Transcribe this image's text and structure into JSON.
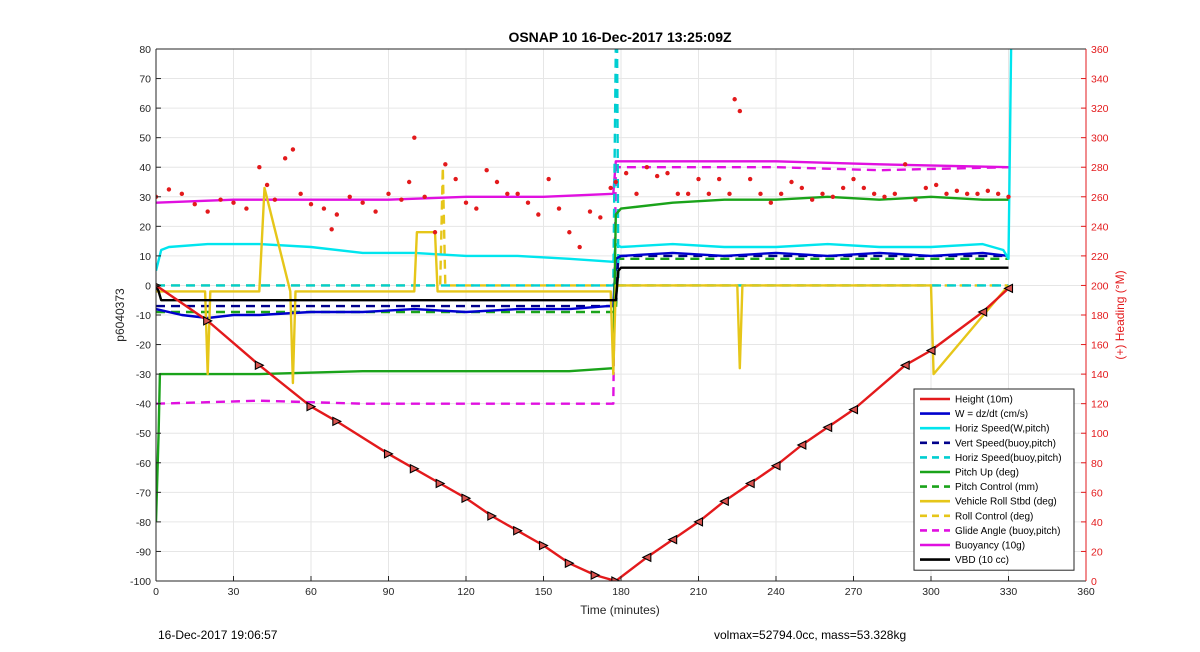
{
  "chart_data": {
    "type": "line",
    "title": "OSNAP 10 16-Dec-2017 13:25:09Z",
    "xlabel": "Time (minutes)",
    "ylabel": "p6040373",
    "y2label": "(+) Heading (°M)",
    "xlim": [
      0,
      360
    ],
    "ylim": [
      -100,
      80
    ],
    "y2lim": [
      0,
      360
    ],
    "xticks": [
      "0",
      "30",
      "60",
      "90",
      "120",
      "150",
      "180",
      "210",
      "240",
      "270",
      "300",
      "330",
      "360"
    ],
    "yticks": [
      "80",
      "70",
      "60",
      "50",
      "40",
      "30",
      "20",
      "10",
      "0",
      "-10",
      "-20",
      "-30",
      "-40",
      "-50",
      "-60",
      "-70",
      "-80",
      "-90",
      "-100"
    ],
    "y2ticks": [
      "360",
      "340",
      "320",
      "300",
      "280",
      "260",
      "240",
      "220",
      "200",
      "180",
      "160",
      "140",
      "120",
      "100",
      "80",
      "60",
      "40",
      "20",
      "0"
    ],
    "grid": true,
    "legend_position": "bottom-right",
    "series": [
      {
        "name": "Height (10m)",
        "color": "#e31a1c",
        "style": "solid",
        "x": [
          0,
          20,
          40,
          60,
          70,
          90,
          100,
          110,
          120,
          130,
          140,
          150,
          160,
          170,
          178,
          190,
          200,
          210,
          220,
          230,
          240,
          250,
          260,
          270,
          290,
          300,
          320,
          330
        ],
        "y": [
          0,
          -12,
          -27,
          -41,
          -46,
          -57,
          -62,
          -67,
          -72,
          -78,
          -83,
          -88,
          -94,
          -98,
          -100,
          -92,
          -86,
          -80,
          -73,
          -67,
          -61,
          -54,
          -48,
          -42,
          -27,
          -22,
          -9,
          -1
        ]
      },
      {
        "name": "W = dz/dt (cm/s)",
        "color": "#0000cd",
        "style": "solid",
        "x": [
          0,
          10,
          20,
          30,
          40,
          60,
          80,
          100,
          120,
          140,
          160,
          175,
          177,
          178,
          180,
          200,
          220,
          240,
          260,
          280,
          300,
          320,
          330
        ],
        "y": [
          -8,
          -10,
          -11,
          -10,
          -10,
          -9,
          -9,
          -8,
          -9,
          -8,
          -8,
          -7,
          -7,
          9,
          10,
          11,
          10,
          11,
          10,
          11,
          10,
          11,
          10
        ]
      },
      {
        "name": "Horiz Speed(W,pitch)",
        "color": "#00e5ee",
        "style": "solid",
        "x": [
          0,
          2,
          5,
          20,
          40,
          60,
          80,
          100,
          120,
          140,
          160,
          177,
          178,
          180,
          200,
          220,
          240,
          260,
          280,
          300,
          320,
          328,
          330,
          331
        ],
        "y": [
          5,
          12,
          13,
          14,
          14,
          13,
          11,
          11,
          10,
          10,
          9,
          8,
          14,
          13,
          14,
          13,
          13,
          14,
          13,
          13,
          14,
          12,
          9,
          80
        ]
      },
      {
        "name": "Vert Speed(buoy,pitch)",
        "color": "#00008b",
        "style": "dash",
        "x": [
          0,
          178,
          179,
          330
        ],
        "y": [
          -7,
          -7,
          10,
          10
        ]
      },
      {
        "name": "Horiz Speed(buoy,pitch)",
        "color": "#00ced1",
        "style": "dash",
        "x": [
          0,
          177,
          178,
          178.5,
          179,
          330
        ],
        "y": [
          0,
          0,
          80,
          80,
          0,
          0
        ]
      },
      {
        "name": "Pitch Up (deg)",
        "color": "#1aa31a",
        "style": "solid",
        "x": [
          0,
          1,
          1.5,
          2,
          40,
          80,
          120,
          160,
          177,
          178,
          180,
          200,
          220,
          240,
          260,
          280,
          300,
          320,
          330
        ],
        "y": [
          -80,
          -50,
          -30,
          -30,
          -30,
          -29,
          -29,
          -29,
          -28,
          24,
          26,
          28,
          29,
          29,
          30,
          29,
          30,
          29,
          29
        ]
      },
      {
        "name": "Pitch Control (mm)",
        "color": "#1aa31a",
        "style": "dash",
        "x": [
          0,
          178,
          179,
          330
        ],
        "y": [
          -9,
          -9,
          9,
          9
        ]
      },
      {
        "name": "Vehicle Roll Stbd (deg)",
        "color": "#e6c619",
        "style": "solid",
        "x": [
          0,
          19,
          20,
          21,
          40,
          42,
          52,
          53,
          54,
          100,
          101,
          108,
          109,
          176,
          177,
          178,
          200,
          225,
          226,
          227,
          300,
          301,
          330
        ],
        "y": [
          -2,
          -2,
          -30,
          -2,
          -2,
          33,
          -2,
          -33,
          -2,
          -2,
          18,
          18,
          -2,
          -2,
          -30,
          0,
          0,
          0,
          -28,
          0,
          0,
          -30,
          0
        ]
      },
      {
        "name": "Roll Control (deg)",
        "color": "#e6c619",
        "style": "dash",
        "x": [
          0,
          110,
          111,
          112,
          178,
          180,
          300,
          330
        ],
        "y": [
          0,
          0,
          40,
          0,
          0,
          0,
          0,
          0
        ]
      },
      {
        "name": "Glide Angle (buoy,pitch)",
        "color": "#e010e0",
        "style": "dash",
        "x": [
          0,
          40,
          80,
          120,
          160,
          177,
          178,
          200,
          240,
          280,
          330
        ],
        "y": [
          -40,
          -39,
          -40,
          -40,
          -40,
          -40,
          40,
          40,
          40,
          39,
          40
        ]
      },
      {
        "name": "Buoyancy (10g)",
        "color": "#e010e0",
        "style": "solid",
        "x": [
          0,
          30,
          60,
          90,
          120,
          150,
          177,
          178,
          200,
          240,
          280,
          330
        ],
        "y": [
          28,
          29,
          29,
          29,
          30,
          30,
          31,
          42,
          42,
          42,
          41,
          40
        ]
      },
      {
        "name": "VBD (10 cc)",
        "color": "#000000",
        "style": "solid",
        "x": [
          0,
          1,
          2,
          178,
          179,
          180,
          330
        ],
        "y": [
          0,
          -2,
          -5,
          -5,
          5,
          6,
          6
        ]
      },
      {
        "name": "(+) Heading (°M)",
        "axis": "right",
        "color": "#e31a1c",
        "style": "dots",
        "x": [
          0,
          5,
          10,
          15,
          20,
          25,
          30,
          35,
          40,
          43,
          46,
          50,
          53,
          56,
          60,
          65,
          68,
          70,
          75,
          80,
          85,
          90,
          95,
          98,
          100,
          104,
          108,
          112,
          116,
          120,
          124,
          128,
          132,
          136,
          140,
          144,
          148,
          152,
          156,
          160,
          164,
          168,
          172,
          176,
          178,
          182,
          186,
          190,
          194,
          198,
          202,
          206,
          210,
          214,
          218,
          222,
          224,
          226,
          230,
          234,
          238,
          242,
          246,
          250,
          254,
          258,
          262,
          266,
          270,
          274,
          278,
          282,
          286,
          290,
          294,
          298,
          302,
          306,
          310,
          314,
          318,
          322,
          326,
          330
        ],
        "y": [
          260,
          265,
          262,
          255,
          250,
          258,
          256,
          252,
          280,
          268,
          258,
          286,
          292,
          262,
          255,
          252,
          238,
          248,
          260,
          256,
          250,
          262,
          258,
          270,
          300,
          260,
          236,
          282,
          272,
          256,
          252,
          278,
          270,
          262,
          262,
          256,
          248,
          272,
          252,
          236,
          226,
          250,
          246,
          266,
          270,
          276,
          262,
          280,
          274,
          276,
          262,
          262,
          272,
          262,
          272,
          262,
          326,
          318,
          272,
          262,
          256,
          262,
          270,
          266,
          258,
          262,
          260,
          266,
          272,
          266,
          262,
          260,
          262,
          282,
          258,
          266,
          268,
          262,
          264,
          262,
          262,
          264,
          262,
          260
        ]
      }
    ]
  },
  "footer": {
    "left": "16-Dec-2017 19:06:57",
    "right": "volmax=52794.0cc, mass=53.328kg"
  },
  "legend_markers": "triangle-marker-icon"
}
